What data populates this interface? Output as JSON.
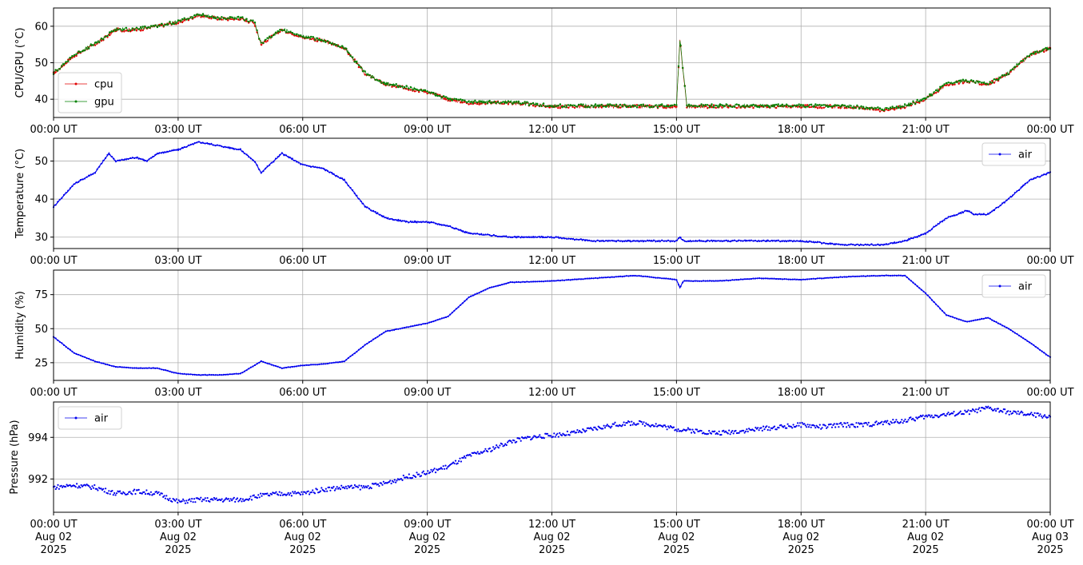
{
  "colors": {
    "cpu": "#e00000",
    "gpu": "#008000",
    "air": "#0000ee",
    "grid": "#b0b0b0"
  },
  "x_ticks": [
    "00:00 UT",
    "03:00 UT",
    "06:00 UT",
    "09:00 UT",
    "12:00 UT",
    "15:00 UT",
    "18:00 UT",
    "21:00 UT",
    "00:00 UT"
  ],
  "x_tick_dates": [
    [
      "Aug 02",
      "2025"
    ],
    [
      "Aug 02",
      "2025"
    ],
    [
      "Aug 02",
      "2025"
    ],
    [
      "Aug 02",
      "2025"
    ],
    [
      "Aug 02",
      "2025"
    ],
    [
      "Aug 02",
      "2025"
    ],
    [
      "Aug 02",
      "2025"
    ],
    [
      "Aug 02",
      "2025"
    ],
    [
      "Aug 03",
      "2025"
    ]
  ],
  "chart_data": [
    {
      "type": "line",
      "ylabel": "CPU/GPU (°C)",
      "xlim": [
        "2025-08-02 00:00",
        "2025-08-03 00:00"
      ],
      "ylim": [
        35,
        65
      ],
      "yticks": [
        40,
        50,
        60
      ],
      "grid": true,
      "legend": "lower-left",
      "x": [
        "00:00",
        "00:30",
        "01:00",
        "01:30",
        "02:00",
        "02:30",
        "03:00",
        "03:30",
        "04:00",
        "04:30",
        "04:50",
        "05:00",
        "05:30",
        "06:00",
        "06:30",
        "07:00",
        "07:30",
        "08:00",
        "08:30",
        "09:00",
        "09:30",
        "10:00",
        "10:30",
        "11:00",
        "12:00",
        "13:00",
        "14:00",
        "15:00",
        "15:05",
        "15:15",
        "16:00",
        "17:00",
        "18:00",
        "19:00",
        "20:00",
        "20:30",
        "21:00",
        "21:30",
        "22:00",
        "22:30",
        "23:00",
        "23:30",
        "24:00"
      ],
      "series": [
        {
          "name": "cpu",
          "values": [
            47,
            52,
            55,
            59,
            59,
            60,
            61,
            63,
            62,
            62,
            61,
            55,
            59,
            57,
            56,
            54,
            47,
            44,
            43,
            42,
            40,
            39,
            39,
            39,
            38,
            38,
            38,
            38,
            56,
            38,
            38,
            38,
            38,
            38,
            37,
            38,
            40,
            44,
            45,
            44,
            47,
            52,
            54
          ]
        },
        {
          "name": "gpu",
          "values": [
            47,
            52,
            55,
            59,
            59,
            60,
            61,
            63,
            62,
            62,
            61,
            55,
            59,
            57,
            56,
            54,
            47,
            44,
            43,
            42,
            40,
            39,
            39,
            39,
            38,
            38,
            38,
            38,
            56,
            38,
            38,
            38,
            38,
            38,
            37,
            38,
            40,
            44,
            45,
            44,
            47,
            52,
            54
          ]
        }
      ]
    },
    {
      "type": "line",
      "ylabel": "Temperature (°C)",
      "xlim": [
        "2025-08-02 00:00",
        "2025-08-03 00:00"
      ],
      "ylim": [
        27,
        56
      ],
      "yticks": [
        30,
        40,
        50
      ],
      "grid": true,
      "legend": "upper-right",
      "x": [
        "00:00",
        "00:30",
        "01:00",
        "01:20",
        "01:30",
        "02:00",
        "02:15",
        "02:30",
        "03:00",
        "03:30",
        "04:00",
        "04:30",
        "04:50",
        "05:00",
        "05:30",
        "06:00",
        "06:30",
        "07:00",
        "07:30",
        "08:00",
        "08:30",
        "09:00",
        "09:30",
        "10:00",
        "11:00",
        "12:00",
        "13:00",
        "14:00",
        "15:00",
        "15:05",
        "15:10",
        "16:00",
        "17:00",
        "18:00",
        "19:00",
        "20:00",
        "20:30",
        "21:00",
        "21:30",
        "22:00",
        "22:10",
        "22:30",
        "23:00",
        "23:30",
        "24:00"
      ],
      "series": [
        {
          "name": "air",
          "values": [
            38,
            44,
            47,
            52,
            50,
            51,
            50,
            52,
            53,
            55,
            54,
            53,
            50,
            47,
            52,
            49,
            48,
            45,
            38,
            35,
            34,
            34,
            33,
            31,
            30,
            30,
            29,
            29,
            29,
            30,
            29,
            29,
            29,
            29,
            28,
            28,
            29,
            31,
            35,
            37,
            36,
            36,
            40,
            45,
            47
          ]
        }
      ]
    },
    {
      "type": "line",
      "ylabel": "Humidity (%)",
      "xlim": [
        "2025-08-02 00:00",
        "2025-08-03 00:00"
      ],
      "ylim": [
        12,
        93
      ],
      "yticks": [
        25,
        50,
        75
      ],
      "grid": true,
      "legend": "upper-right",
      "x": [
        "00:00",
        "00:30",
        "01:00",
        "01:30",
        "02:00",
        "02:30",
        "03:00",
        "03:30",
        "04:00",
        "04:30",
        "05:00",
        "05:30",
        "06:00",
        "06:30",
        "07:00",
        "07:30",
        "08:00",
        "08:30",
        "09:00",
        "09:30",
        "10:00",
        "10:30",
        "11:00",
        "12:00",
        "13:00",
        "14:00",
        "15:00",
        "15:05",
        "15:10",
        "16:00",
        "17:00",
        "18:00",
        "19:00",
        "20:00",
        "20:30",
        "21:00",
        "21:30",
        "22:00",
        "22:30",
        "23:00",
        "23:30",
        "24:00"
      ],
      "series": [
        {
          "name": "air",
          "values": [
            44,
            32,
            26,
            22,
            21,
            21,
            17,
            16,
            16,
            17,
            26,
            21,
            23,
            24,
            26,
            38,
            48,
            51,
            54,
            59,
            73,
            80,
            84,
            85,
            87,
            89,
            86,
            80,
            85,
            85,
            87,
            86,
            88,
            89,
            89,
            76,
            60,
            55,
            58,
            50,
            40,
            29
          ]
        }
      ]
    },
    {
      "type": "scatter",
      "ylabel": "Pressure (hPa)",
      "xlim": [
        "2025-08-02 00:00",
        "2025-08-03 00:00"
      ],
      "ylim": [
        990.4,
        995.7
      ],
      "yticks": [
        992,
        994
      ],
      "grid": true,
      "legend": "upper-left",
      "x": [
        "00:00",
        "00:30",
        "01:00",
        "01:30",
        "02:00",
        "02:30",
        "03:00",
        "03:30",
        "04:00",
        "04:30",
        "05:00",
        "05:30",
        "06:00",
        "06:30",
        "07:00",
        "07:30",
        "08:00",
        "08:30",
        "09:00",
        "09:30",
        "10:00",
        "10:30",
        "11:00",
        "11:30",
        "12:00",
        "12:30",
        "13:00",
        "13:30",
        "14:00",
        "14:30",
        "15:00",
        "15:30",
        "16:00",
        "16:30",
        "17:00",
        "17:30",
        "18:00",
        "18:30",
        "19:00",
        "19:30",
        "20:00",
        "20:30",
        "21:00",
        "21:30",
        "22:00",
        "22:30",
        "23:00",
        "23:30",
        "24:00"
      ],
      "series": [
        {
          "name": "air",
          "values": [
            991.6,
            991.7,
            991.6,
            991.3,
            991.4,
            991.3,
            990.9,
            991.0,
            991.0,
            991.0,
            991.2,
            991.3,
            991.3,
            991.5,
            991.6,
            991.6,
            991.8,
            992.1,
            992.3,
            992.6,
            993.1,
            993.4,
            993.8,
            994.0,
            994.1,
            994.2,
            994.4,
            994.6,
            994.7,
            994.6,
            994.4,
            994.3,
            994.2,
            994.3,
            994.4,
            994.5,
            994.6,
            994.5,
            994.6,
            994.6,
            994.7,
            994.8,
            995.0,
            995.1,
            995.2,
            995.4,
            995.2,
            995.1,
            995.0
          ]
        }
      ]
    }
  ]
}
